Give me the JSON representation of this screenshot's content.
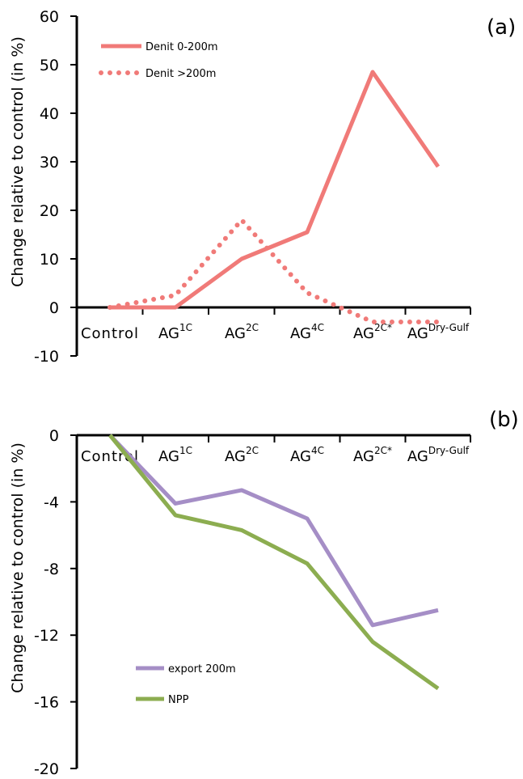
{
  "chart_data": [
    {
      "type": "line",
      "panel_label": "(a)",
      "ylabel": "Change relative to control (in %)",
      "ylim": [
        -10,
        60
      ],
      "yticks": [
        -10,
        0,
        10,
        20,
        30,
        40,
        50,
        60
      ],
      "categories": [
        {
          "base": "Control",
          "sup": ""
        },
        {
          "base": "AG",
          "sup": "1C"
        },
        {
          "base": "AG",
          "sup": "2C"
        },
        {
          "base": "AG",
          "sup": "4C"
        },
        {
          "base": "AG",
          "sup": "2C*"
        },
        {
          "base": "AG",
          "sup": "Dry-Gulf"
        }
      ],
      "legend_position": "top-left",
      "series": [
        {
          "name": "Denit 0-200m",
          "color": "#f07a78",
          "style": "solid",
          "values": [
            0,
            0,
            10,
            15.5,
            48.5,
            29
          ]
        },
        {
          "name": "Denit >200m",
          "color": "#f07a78",
          "style": "dotted",
          "values": [
            0,
            2.5,
            18,
            3,
            -3,
            -3
          ]
        }
      ]
    },
    {
      "type": "line",
      "panel_label": "(b)",
      "ylabel": "Change relative to control (in %)",
      "ylim": [
        -20,
        0
      ],
      "yticks": [
        -20,
        -16,
        -12,
        -8,
        -4,
        0
      ],
      "categories": [
        {
          "base": "Control",
          "sup": ""
        },
        {
          "base": "AG",
          "sup": "1C"
        },
        {
          "base": "AG",
          "sup": "2C"
        },
        {
          "base": "AG",
          "sup": "4C"
        },
        {
          "base": "AG",
          "sup": "2C*"
        },
        {
          "base": "AG",
          "sup": "Dry-Gulf"
        }
      ],
      "legend_position": "bottom-left",
      "series": [
        {
          "name": "export 200m",
          "color": "#a58ec6",
          "style": "solid",
          "values": [
            0,
            -4.1,
            -3.3,
            -5.0,
            -11.4,
            -10.5
          ]
        },
        {
          "name": "NPP",
          "color": "#8cad50",
          "style": "solid",
          "values": [
            0,
            -4.8,
            -5.7,
            -7.7,
            -12.4,
            -15.2
          ]
        }
      ]
    }
  ]
}
